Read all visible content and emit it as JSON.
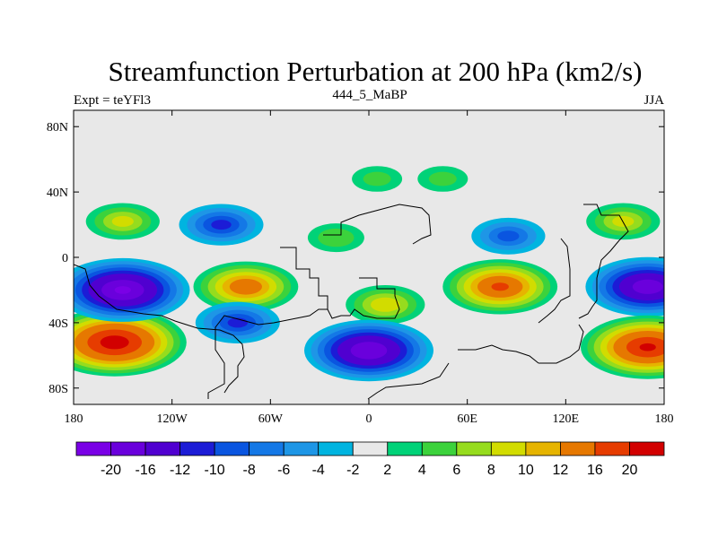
{
  "chart_data": {
    "type": "heatmap",
    "title": "Streamfunction Perturbation at 200 hPa (km2/s)",
    "left_label": "Expt = teYFl3",
    "center_label": "444_5_MaBP",
    "right_label": "JJA",
    "x_ticks": [
      "180",
      "120W",
      "60W",
      "0",
      "60E",
      "120E",
      "180"
    ],
    "x_tick_values": [
      -180,
      -120,
      -60,
      0,
      60,
      120,
      180
    ],
    "y_ticks": [
      "80N",
      "40N",
      "0",
      "40S",
      "80S"
    ],
    "y_tick_values": [
      80,
      40,
      0,
      -40,
      -80
    ],
    "xlim": [
      -180,
      180
    ],
    "ylim": [
      -90,
      90
    ],
    "colorbar": {
      "colors": [
        "#7a00e6",
        "#6a00dc",
        "#5000d0",
        "#1c1cd6",
        "#0a55e0",
        "#1478e6",
        "#1e96e6",
        "#00b4e0",
        "#e8e8e8",
        "#00d278",
        "#3cd23c",
        "#96dc1e",
        "#d2dc00",
        "#e6b400",
        "#e67800",
        "#e63c00",
        "#d20000"
      ],
      "labels": [
        "-20",
        "-16",
        "-12",
        "-10",
        "-8",
        "-6",
        "-4",
        "-2",
        "2",
        "4",
        "6",
        "8",
        "10",
        "12",
        "16",
        "20"
      ]
    },
    "anomaly_centers": [
      {
        "lon": -155,
        "lat": -52,
        "value": 22
      },
      {
        "lon": -150,
        "lat": -20,
        "value": -20
      },
      {
        "lon": -150,
        "lat": 22,
        "value": 8
      },
      {
        "lon": -90,
        "lat": 20,
        "value": -10
      },
      {
        "lon": -20,
        "lat": 12,
        "value": 5
      },
      {
        "lon": 5,
        "lat": 48,
        "value": 4
      },
      {
        "lon": 85,
        "lat": 13,
        "value": -8
      },
      {
        "lon": -75,
        "lat": -18,
        "value": 14
      },
      {
        "lon": 10,
        "lat": -29,
        "value": 9
      },
      {
        "lon": -80,
        "lat": -40,
        "value": -10
      },
      {
        "lon": 80,
        "lat": -18,
        "value": 16
      },
      {
        "lon": 0,
        "lat": -57,
        "value": -19
      },
      {
        "lon": 155,
        "lat": 22,
        "value": 8
      },
      {
        "lon": 170,
        "lat": -18,
        "value": -18
      },
      {
        "lon": 170,
        "lat": -55,
        "value": 20
      },
      {
        "lon": 45,
        "lat": 48,
        "value": 4
      }
    ]
  }
}
